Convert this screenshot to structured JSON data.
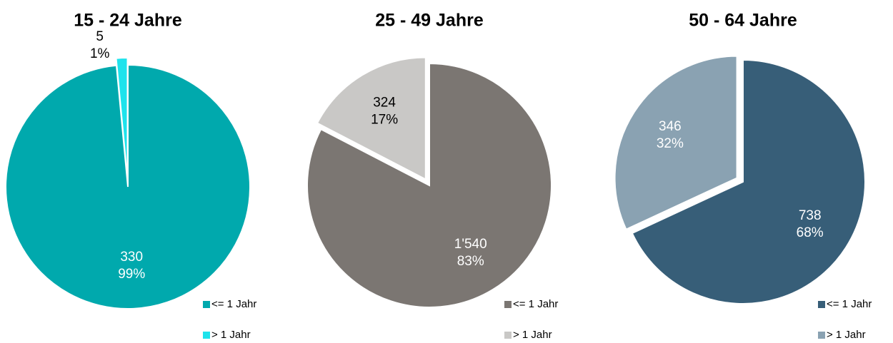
{
  "chart_data": [
    {
      "type": "pie",
      "title": "15 - 24 Jahre",
      "categories": [
        "<= 1 Jahr",
        "> 1 Jahr"
      ],
      "values": [
        330,
        5
      ],
      "percent_labels": [
        "99%",
        "1%"
      ],
      "colors": [
        "#00a9ad",
        "#1ee3ec"
      ],
      "label_colors": [
        "#ffffff",
        "#000000"
      ]
    },
    {
      "type": "pie",
      "title": "25 - 49 Jahre",
      "categories": [
        "<= 1 Jahr",
        "> 1 Jahr"
      ],
      "values": [
        1540,
        324
      ],
      "value_labels": [
        "1'540",
        "324"
      ],
      "percent_labels": [
        "83%",
        "17%"
      ],
      "colors": [
        "#7b7672",
        "#c9c8c6"
      ],
      "label_colors": [
        "#ffffff",
        "#000000"
      ]
    },
    {
      "type": "pie",
      "title": "50 - 64 Jahre",
      "categories": [
        "<= 1 Jahr",
        "> 1 Jahr"
      ],
      "values": [
        738,
        346
      ],
      "percent_labels": [
        "68%",
        "32%"
      ],
      "colors": [
        "#375e78",
        "#8aa2b2"
      ],
      "label_colors": [
        "#ffffff",
        "#ffffff"
      ]
    }
  ]
}
